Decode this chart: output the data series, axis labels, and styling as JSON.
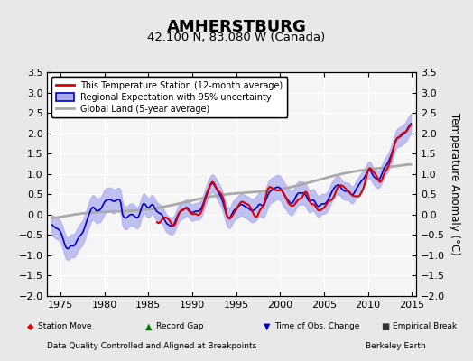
{
  "title": "AMHERSTBURG",
  "subtitle": "42.100 N, 83.080 W (Canada)",
  "ylabel": "Temperature Anomaly (°C)",
  "xlabel_bottom": "Data Quality Controlled and Aligned at Breakpoints",
  "xlabel_right": "Berkeley Earth",
  "xlim": [
    1973.5,
    2015.5
  ],
  "ylim": [
    -2.0,
    3.5
  ],
  "yticks": [
    -2.0,
    -1.5,
    -1.0,
    -0.5,
    0.0,
    0.5,
    1.0,
    1.5,
    2.0,
    2.5,
    3.0,
    3.5
  ],
  "xticks": [
    1975,
    1980,
    1985,
    1990,
    1995,
    2000,
    2005,
    2010,
    2015
  ],
  "bg_color": "#e8e8e8",
  "plot_bg_color": "#f5f5f5",
  "grid_color": "#ffffff",
  "red_color": "#dd0000",
  "blue_color": "#0000cc",
  "blue_fill_color": "#aaaaee",
  "gray_color": "#aaaaaa",
  "legend_items": [
    {
      "label": "This Temperature Station (12-month average)",
      "color": "#dd0000",
      "lw": 2.0
    },
    {
      "label": "Regional Expectation with 95% uncertainty",
      "color": "#0000cc",
      "lw": 1.5
    },
    {
      "label": "Global Land (5-year average)",
      "color": "#aaaaaa",
      "lw": 2.0
    }
  ],
  "bottom_legend": [
    {
      "label": "Station Move",
      "marker": "D",
      "color": "#dd0000"
    },
    {
      "label": "Record Gap",
      "marker": "^",
      "color": "#007700"
    },
    {
      "label": "Time of Obs. Change",
      "marker": "v",
      "color": "#0000cc"
    },
    {
      "label": "Empirical Break",
      "marker": "s",
      "color": "#333333"
    }
  ]
}
